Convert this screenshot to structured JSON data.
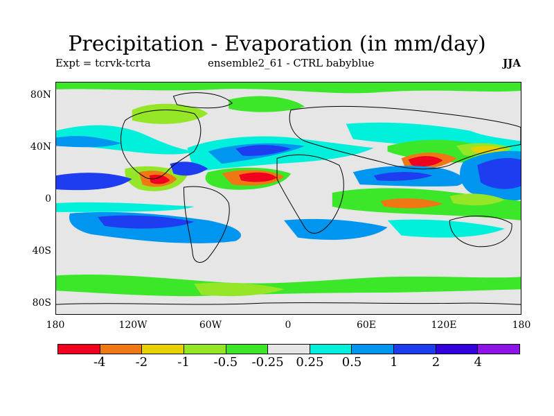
{
  "title": "Precipitation - Evaporation (in mm/day)",
  "subtitle_left": "Expt = tcrvk-tcrta",
  "subtitle_center": "ensemble2_61 - CTRL babyblue",
  "season": "JJA",
  "y_ticks": [
    "80N",
    "40N",
    "0",
    "40S",
    "80S"
  ],
  "x_ticks": [
    "180",
    "120W",
    "60W",
    "0",
    "60E",
    "120E",
    "180"
  ],
  "colorbar": {
    "labels": [
      "-4",
      "-2",
      "-1",
      "-0.5",
      "-0.25",
      "0.25",
      "0.5",
      "1",
      "2",
      "4"
    ],
    "colors": [
      "#f0001e",
      "#f07814",
      "#e6d200",
      "#96e628",
      "#3ce628",
      "#e6e6e6",
      "#00f0dc",
      "#0096f0",
      "#1e3cf0",
      "#3200dc",
      "#8c14e6"
    ]
  },
  "chart_data": {
    "type": "heatmap",
    "title": "Precipitation - Evaporation (in mm/day)",
    "xlabel": "",
    "ylabel": "",
    "x_range": [
      -180,
      180
    ],
    "y_range": [
      -90,
      90
    ],
    "levels": [
      -4,
      -2,
      -1,
      -0.5,
      -0.25,
      0.25,
      0.5,
      1,
      2,
      4
    ]
  }
}
